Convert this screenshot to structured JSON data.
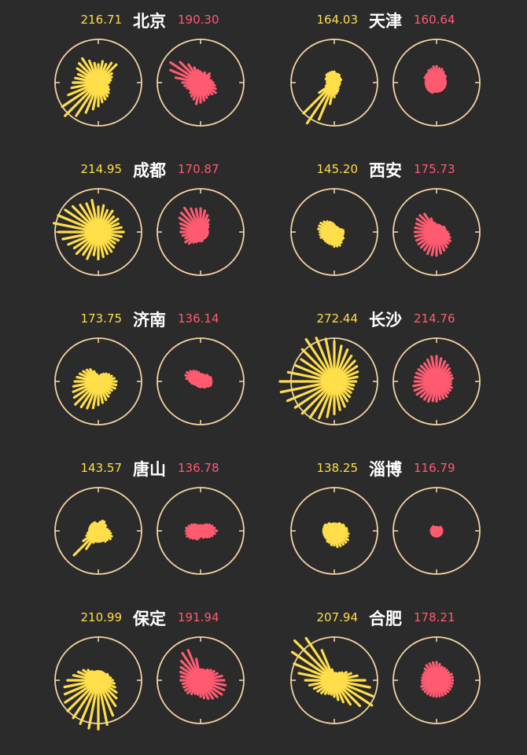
{
  "chart_data": {
    "type": "radial-bar",
    "colors": {
      "background": "#2b2b2b",
      "left": "#ffde4a",
      "right": "#ff5a70",
      "ring": "#f2d2a0"
    },
    "cities": [
      {
        "name": "北京",
        "left_value": "216.71",
        "right_value": "190.30",
        "left": [
          10,
          12,
          11,
          13,
          14,
          9,
          8,
          7,
          6,
          5,
          6,
          7,
          8,
          9,
          10,
          11,
          13,
          15,
          18,
          22,
          26,
          24,
          18,
          15,
          14,
          13,
          12,
          14,
          15,
          16,
          13,
          11
        ],
        "right": [
          6,
          5,
          6,
          5,
          7,
          6,
          5,
          6,
          7,
          8,
          9,
          10,
          9,
          8,
          9,
          10,
          11,
          12,
          10,
          9,
          8,
          7,
          8,
          9,
          10,
          14,
          18,
          20,
          16,
          12,
          9,
          7
        ]
      },
      {
        "name": "天津",
        "left_value": "164.03",
        "right_value": "160.64",
        "left": [
          6,
          5,
          5,
          5,
          4,
          4,
          4,
          3,
          3,
          3,
          3,
          3,
          3,
          4,
          5,
          6,
          8,
          12,
          22,
          27,
          24,
          10,
          5,
          4,
          4,
          4,
          5,
          5,
          6,
          6,
          6,
          6
        ],
        "right": [
          9,
          8,
          8,
          7,
          6,
          6,
          5,
          5,
          5,
          5,
          5,
          5,
          5,
          5,
          5,
          5,
          5,
          5,
          6,
          6,
          6,
          6,
          6,
          6,
          6,
          6,
          7,
          7,
          7,
          8,
          8,
          9
        ]
      },
      {
        "name": "成都",
        "left_value": "214.95",
        "right_value": "170.87",
        "left": [
          14,
          15,
          13,
          14,
          12,
          13,
          12,
          13,
          14,
          13,
          12,
          11,
          12,
          13,
          13,
          14,
          15,
          13,
          16,
          15,
          17,
          16,
          18,
          20,
          22,
          25,
          24,
          22,
          20,
          18,
          17,
          18
        ],
        "right": [
          13,
          12,
          10,
          8,
          6,
          5,
          4,
          4,
          4,
          4,
          4,
          4,
          4,
          4,
          4,
          5,
          5,
          5,
          6,
          7,
          9,
          10,
          9,
          10,
          11,
          11,
          12,
          14,
          15,
          16,
          14,
          13
        ]
      },
      {
        "name": "西安",
        "left_value": "145.20",
        "right_value": "175.73",
        "left": [
          4,
          3,
          3,
          3,
          3,
          3,
          4,
          5,
          5,
          5,
          5,
          6,
          6,
          7,
          8,
          8,
          8,
          7,
          7,
          7,
          7,
          7,
          8,
          8,
          8,
          9,
          9,
          9,
          8,
          7,
          6,
          5
        ],
        "right": [
          4,
          4,
          4,
          4,
          4,
          5,
          5,
          5,
          6,
          7,
          8,
          9,
          9,
          10,
          11,
          12,
          13,
          13,
          13,
          12,
          12,
          12,
          12,
          12,
          12,
          12,
          12,
          13,
          13,
          12,
          8,
          5
        ]
      },
      {
        "name": "济南",
        "left_value": "173.75",
        "right_value": "136.14",
        "left": [
          3,
          3,
          4,
          5,
          6,
          7,
          8,
          9,
          10,
          10,
          10,
          9,
          9,
          10,
          11,
          12,
          13,
          15,
          16,
          17,
          18,
          16,
          15,
          14,
          13,
          12,
          11,
          10,
          9,
          8,
          6,
          4
        ],
        "right": [
          4,
          4,
          4,
          4,
          5,
          5,
          6,
          6,
          6,
          6,
          6,
          5,
          4,
          4,
          3,
          3,
          3,
          3,
          3,
          3,
          3,
          3,
          4,
          5,
          6,
          8,
          9,
          9,
          8,
          7,
          6,
          5
        ]
      },
      {
        "name": "长沙",
        "left_value": "272.44",
        "right_value": "214.76",
        "left": [
          22,
          20,
          19,
          17,
          16,
          15,
          14,
          13,
          12,
          11,
          11,
          11,
          12,
          13,
          15,
          16,
          18,
          20,
          22,
          24,
          25,
          26,
          28,
          30,
          30,
          26,
          23,
          22,
          25,
          28,
          26,
          24
        ],
        "right": [
          14,
          13,
          12,
          11,
          10,
          9,
          9,
          9,
          8,
          8,
          9,
          9,
          9,
          10,
          10,
          10,
          11,
          11,
          12,
          12,
          12,
          13,
          13,
          13,
          12,
          12,
          12,
          12,
          12,
          12,
          13,
          14
        ]
      },
      {
        "name": "唐山",
        "left_value": "143.57",
        "right_value": "136.78",
        "left": [
          4,
          5,
          6,
          6,
          5,
          5,
          4,
          5,
          6,
          7,
          8,
          8,
          7,
          7,
          6,
          6,
          6,
          6,
          7,
          12,
          19,
          10,
          7,
          6,
          5,
          5,
          5,
          5,
          5,
          5,
          5,
          4
        ],
        "right": [
          3,
          3,
          3,
          4,
          5,
          6,
          7,
          8,
          9,
          8,
          7,
          6,
          5,
          4,
          4,
          3,
          3,
          4,
          5,
          5,
          6,
          7,
          8,
          8,
          8,
          8,
          7,
          6,
          5,
          4,
          3,
          3
        ]
      },
      {
        "name": "淄博",
        "left_value": "138.25",
        "right_value": "116.79",
        "left": [
          4,
          4,
          4,
          5,
          5,
          6,
          6,
          7,
          7,
          8,
          8,
          9,
          9,
          9,
          9,
          9,
          8,
          8,
          7,
          7,
          6,
          6,
          6,
          6,
          6,
          6,
          6,
          6,
          5,
          5,
          4,
          4
        ],
        "right": [
          2,
          2,
          2,
          2,
          3,
          3,
          3,
          3,
          3,
          3,
          3,
          3,
          3,
          3,
          3,
          3,
          3,
          3,
          3,
          3,
          3,
          3,
          3,
          3,
          3,
          3,
          3,
          3,
          3,
          3,
          2,
          2
        ]
      },
      {
        "name": "保定",
        "left_value": "210.99",
        "right_value": "191.94",
        "left": [
          5,
          5,
          5,
          5,
          5,
          6,
          6,
          7,
          8,
          9,
          10,
          12,
          14,
          17,
          21,
          25,
          27,
          27,
          26,
          25,
          24,
          22,
          20,
          19,
          17,
          14,
          12,
          10,
          8,
          6,
          5,
          5
        ],
        "right": [
          6,
          6,
          6,
          7,
          8,
          9,
          10,
          12,
          13,
          14,
          14,
          14,
          13,
          12,
          11,
          10,
          9,
          8,
          8,
          9,
          10,
          10,
          10,
          10,
          11,
          11,
          12,
          13,
          15,
          18,
          18,
          12
        ]
      },
      {
        "name": "合肥",
        "left_value": "207.94",
        "right_value": "178.21",
        "left": [
          4,
          4,
          4,
          5,
          6,
          8,
          10,
          13,
          17,
          20,
          23,
          25,
          20,
          16,
          13,
          11,
          9,
          8,
          8,
          9,
          10,
          11,
          12,
          14,
          16,
          20,
          24,
          28,
          31,
          28,
          18,
          6
        ],
        "right": [
          10,
          9,
          8,
          8,
          8,
          8,
          9,
          9,
          9,
          9,
          9,
          9,
          9,
          9,
          9,
          9,
          9,
          9,
          9,
          9,
          9,
          9,
          9,
          8,
          8,
          8,
          8,
          8,
          9,
          10,
          10,
          10
        ]
      }
    ]
  }
}
